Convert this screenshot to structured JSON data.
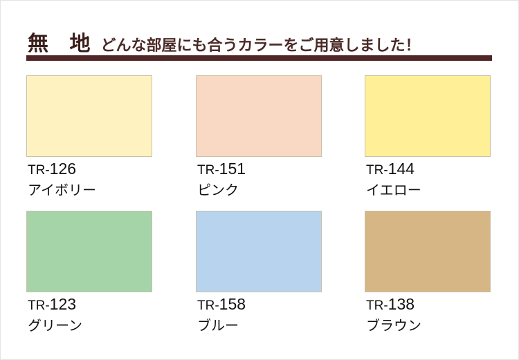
{
  "header": {
    "title": "無 地",
    "subtitle": "どんな部屋にも合うカラーをご用意しました！",
    "bar_color": "#4f2727"
  },
  "colors": [
    {
      "prefix": "TR-",
      "number": "126",
      "name": "アイボリー",
      "hex": "#fef3c0"
    },
    {
      "prefix": "TR-",
      "number": "151",
      "name": "ピンク",
      "hex": "#f9d8c4"
    },
    {
      "prefix": "TR-",
      "number": "144",
      "name": "イエロー",
      "hex": "#fff097"
    },
    {
      "prefix": "TR-",
      "number": "123",
      "name": "グリーン",
      "hex": "#a5d4a8"
    },
    {
      "prefix": "TR-",
      "number": "158",
      "name": "ブルー",
      "hex": "#b8d3ee"
    },
    {
      "prefix": "TR-",
      "number": "138",
      "name": "ブラウン",
      "hex": "#d6b685"
    }
  ]
}
